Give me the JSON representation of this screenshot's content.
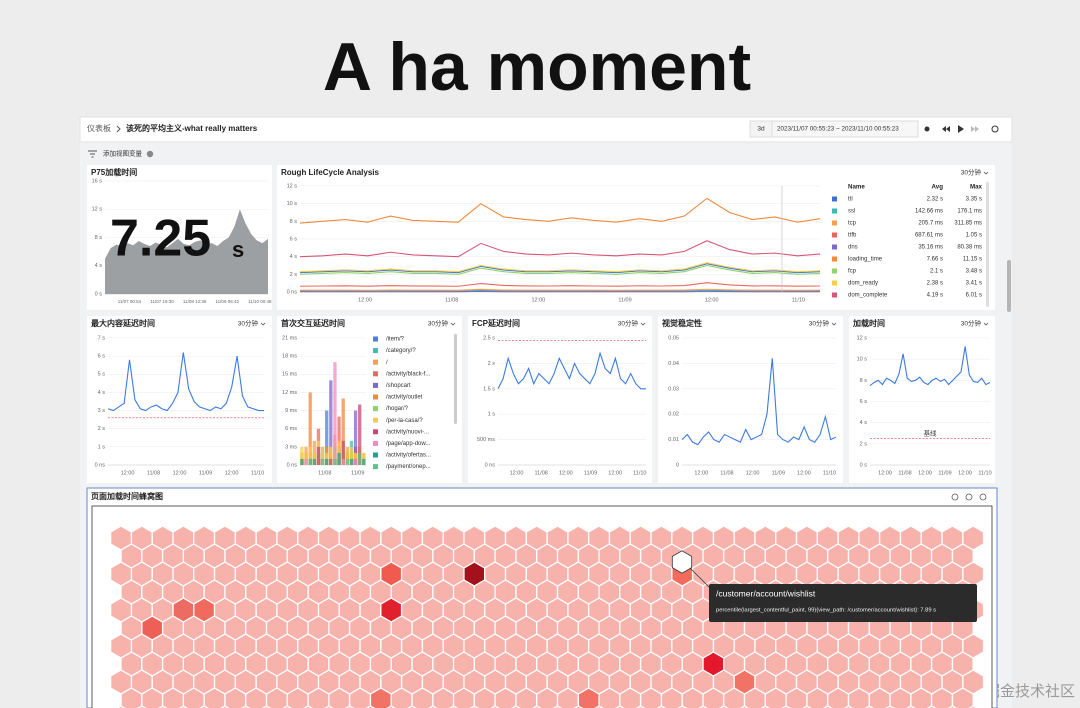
{
  "slide": {
    "title": "A ha moment",
    "watermark": "@稀土掘金技术社区"
  },
  "toolbar": {
    "breadcrumb_root": "仪表板",
    "breadcrumb_current": "该死的平均主义-what really matters",
    "range_preset": "3d",
    "time_range": "2023/11/07 00:55:23 ~ 2023/11/10 00:55:23"
  },
  "variables": {
    "add_label": "添加视图变量"
  },
  "panels": {
    "p75": {
      "type": "area",
      "title": "P75加载时间",
      "value": 7.25,
      "unit": "s",
      "color": "#8c8f93",
      "ylim": [
        0,
        16
      ],
      "yticks": [
        {
          "value": 0,
          "label": "0 s"
        },
        {
          "value": 4,
          "label": "4 s"
        },
        {
          "value": 8,
          "label": "8 s"
        },
        {
          "value": 12,
          "label": "12 s"
        },
        {
          "value": 16,
          "label": "16 s"
        }
      ],
      "xticks": [
        "11/07 00:54",
        "11/07 18:30",
        "11/08 12:36",
        "11/09 06:42",
        "11/10 00:48"
      ],
      "series": [
        {
          "values": [
            5,
            6.5,
            7,
            6.8,
            7.2,
            6.9,
            7.5,
            7.1,
            6.8,
            7.3,
            7,
            6.6,
            7.2,
            7.8,
            7.1,
            6.9,
            7.4,
            7.6,
            7,
            7.2,
            6.8,
            7.5,
            8,
            9.5,
            12,
            10,
            8.5,
            7.6,
            7.2,
            7.8
          ]
        }
      ]
    },
    "lifecycle": {
      "type": "line",
      "title": "Rough LifeCycle Analysis",
      "interval": "30分钟",
      "ylim": [
        0,
        12
      ],
      "yticks": [
        {
          "value": 0,
          "label": "0 ns"
        },
        {
          "value": 2,
          "label": "2 s"
        },
        {
          "value": 4,
          "label": "4 s"
        },
        {
          "value": 6,
          "label": "6 s"
        },
        {
          "value": 8,
          "label": "8 s"
        },
        {
          "value": 10,
          "label": "10 s"
        },
        {
          "value": 12,
          "label": "12 s"
        }
      ],
      "xticks": [
        "12:00",
        "11/08",
        "12:00",
        "11/09",
        "12:00",
        "11/10"
      ],
      "legend_header": [
        "Name",
        "Avg",
        "Max"
      ],
      "series": [
        {
          "name": "ttl",
          "avg": "2.32 s",
          "max": "3.35 s",
          "color": "#3b6fd4",
          "values": [
            2.2,
            2.3,
            2.4,
            2.3,
            2.5,
            2.3,
            2.3,
            2.2,
            2.9,
            2.5,
            2.3,
            2.3,
            2.4,
            2.3,
            2.2,
            2.4,
            2.3,
            2.5,
            3.2,
            2.7,
            2.3,
            2.4,
            2.2,
            2.3
          ]
        },
        {
          "name": "ssl",
          "avg": "142.66 ms",
          "max": "176.1 ms",
          "color": "#3fb8b0",
          "values": [
            0.14,
            0.15,
            0.14,
            0.13,
            0.15,
            0.14,
            0.14,
            0.13,
            0.17,
            0.15,
            0.14,
            0.14,
            0.15,
            0.14,
            0.13,
            0.14,
            0.14,
            0.15,
            0.17,
            0.16,
            0.14,
            0.15,
            0.13,
            0.14
          ]
        },
        {
          "name": "tcp",
          "avg": "205.7 ms",
          "max": "311.85 ms",
          "color": "#f5a04a",
          "values": [
            0.2,
            0.21,
            0.2,
            0.19,
            0.22,
            0.2,
            0.21,
            0.19,
            0.3,
            0.22,
            0.2,
            0.2,
            0.21,
            0.2,
            0.19,
            0.21,
            0.2,
            0.22,
            0.31,
            0.24,
            0.2,
            0.21,
            0.19,
            0.2
          ]
        },
        {
          "name": "ttfb",
          "avg": "687.61 ms",
          "max": "1.05 s",
          "color": "#e8685f",
          "values": [
            0.65,
            0.68,
            0.7,
            0.66,
            0.72,
            0.69,
            0.67,
            0.65,
            0.95,
            0.74,
            0.69,
            0.68,
            0.71,
            0.68,
            0.66,
            0.7,
            0.68,
            0.73,
            1.05,
            0.8,
            0.69,
            0.7,
            0.66,
            0.68
          ]
        },
        {
          "name": "dns",
          "avg": "35.16 ms",
          "max": "80.38 ms",
          "color": "#7b68c8",
          "values": [
            0.03,
            0.04,
            0.03,
            0.03,
            0.04,
            0.03,
            0.04,
            0.03,
            0.08,
            0.04,
            0.03,
            0.03,
            0.04,
            0.03,
            0.03,
            0.04,
            0.03,
            0.04,
            0.07,
            0.05,
            0.03,
            0.04,
            0.03,
            0.03
          ]
        },
        {
          "name": "loading_time",
          "avg": "7.66 s",
          "max": "11.15 s",
          "color": "#f08a3c",
          "values": [
            7.8,
            8,
            8.2,
            7.9,
            8.6,
            8.1,
            8,
            7.9,
            10,
            8.5,
            8.2,
            8,
            8.4,
            8.1,
            7.9,
            8.3,
            8,
            8.6,
            10.6,
            9,
            8.2,
            8.5,
            7.9,
            8.3
          ]
        },
        {
          "name": "fcp",
          "avg": "2.1 s",
          "max": "3.48 s",
          "color": "#8fd36a",
          "values": [
            2,
            2.1,
            2.2,
            2.1,
            2.3,
            2.1,
            2.1,
            2,
            2.7,
            2.3,
            2.1,
            2.1,
            2.2,
            2.1,
            2,
            2.2,
            2.1,
            2.3,
            3,
            2.5,
            2.1,
            2.2,
            2,
            2.1
          ]
        },
        {
          "name": "dom_ready",
          "avg": "2.38 s",
          "max": "3.41 s",
          "color": "#f5cf4a",
          "values": [
            2.3,
            2.4,
            2.5,
            2.4,
            2.6,
            2.4,
            2.4,
            2.3,
            3,
            2.6,
            2.4,
            2.4,
            2.5,
            2.4,
            2.3,
            2.5,
            2.4,
            2.6,
            3.3,
            2.8,
            2.4,
            2.5,
            2.3,
            2.4
          ]
        },
        {
          "name": "dom_complete",
          "avg": "4.19 s",
          "max": "6.01 s",
          "color": "#d6577a",
          "values": [
            4,
            4.1,
            4.3,
            4.1,
            4.5,
            4.2,
            4.1,
            4,
            5.5,
            4.6,
            4.3,
            4.2,
            4.4,
            4.2,
            4.1,
            4.3,
            4.2,
            4.6,
            5.8,
            4.8,
            4.3,
            4.4,
            4.1,
            4.3
          ]
        }
      ]
    },
    "lcp": {
      "type": "line",
      "title": "最大内容延迟时间",
      "interval": "30分钟",
      "threshold": 2.6,
      "ylim": [
        0,
        7
      ],
      "yticks": [
        {
          "value": 0,
          "label": "0 ns"
        },
        {
          "value": 1,
          "label": "1 s"
        },
        {
          "value": 2,
          "label": "2 s"
        },
        {
          "value": 3,
          "label": "3 s"
        },
        {
          "value": 4,
          "label": "4 s"
        },
        {
          "value": 5,
          "label": "5 s"
        },
        {
          "value": 6,
          "label": "6 s"
        },
        {
          "value": 7,
          "label": "7 s"
        }
      ],
      "xticks": [
        "12:00",
        "11/08",
        "12:00",
        "11/09",
        "12:00",
        "11/10"
      ],
      "series": [
        {
          "color": "#3b7be0",
          "values": [
            3.1,
            3,
            3.2,
            3.4,
            5.8,
            3.6,
            3.1,
            3,
            3.2,
            3.3,
            3.1,
            3,
            3.4,
            4,
            6.2,
            4.2,
            3.5,
            3.2,
            3.1,
            3,
            3.2,
            3.1,
            3.4,
            4.3,
            6,
            3.8,
            3.2,
            3.1,
            3,
            3
          ]
        }
      ]
    },
    "fid": {
      "type": "bar",
      "title": "首次交互延迟时间",
      "interval": "30分钟",
      "ylim": [
        0,
        21
      ],
      "yticks": [
        {
          "value": 0,
          "label": "0 ns"
        },
        {
          "value": 3,
          "label": "3 ms"
        },
        {
          "value": 6,
          "label": "6 ms"
        },
        {
          "value": 9,
          "label": "9 ms"
        },
        {
          "value": 12,
          "label": "12 ms"
        },
        {
          "value": 15,
          "label": "15 ms"
        },
        {
          "value": 18,
          "label": "18 ms"
        },
        {
          "value": 21,
          "label": "21 ms"
        }
      ],
      "xticks": [
        "11/08",
        "11/09"
      ],
      "series": [
        {
          "name": "/item/?",
          "color": "#4e7fd8",
          "values": [
            0,
            1,
            0,
            2,
            1,
            0,
            9,
            1,
            0,
            1,
            3,
            0,
            1,
            0,
            2,
            1
          ]
        },
        {
          "name": "/category/?",
          "color": "#47b8ae",
          "values": [
            1,
            0,
            2,
            1,
            0,
            3,
            1,
            0,
            2,
            1,
            0,
            1,
            4,
            0,
            1,
            0
          ]
        },
        {
          "name": "/",
          "color": "#f5a04a",
          "values": [
            2,
            3,
            2,
            4,
            3,
            2,
            3,
            2,
            5,
            3,
            2,
            3,
            2,
            3,
            2,
            2
          ]
        },
        {
          "name": "/activity/black-f...",
          "color": "#e8685f",
          "values": [
            0,
            1,
            0,
            0,
            6,
            1,
            0,
            2,
            0,
            8,
            1,
            0,
            0,
            3,
            0,
            1
          ]
        },
        {
          "name": "/shopcart",
          "color": "#7b68c8",
          "values": [
            0,
            0,
            1,
            0,
            2,
            0,
            0,
            14,
            1,
            0,
            0,
            2,
            0,
            9,
            0,
            0
          ]
        },
        {
          "name": "/activity/outlet",
          "color": "#f08a3c",
          "values": [
            1,
            2,
            12,
            1,
            2,
            1,
            3,
            2,
            1,
            2,
            11,
            2,
            1,
            2,
            1,
            1
          ]
        },
        {
          "name": "/hogar/?",
          "color": "#8fd36a",
          "values": [
            0,
            1,
            0,
            1,
            0,
            2,
            0,
            1,
            3,
            0,
            1,
            0,
            2,
            1,
            0,
            1
          ]
        },
        {
          "name": "/per-la-casa/?",
          "color": "#f5cf4a",
          "values": [
            3,
            2,
            3,
            2,
            4,
            3,
            2,
            3,
            2,
            4,
            3,
            2,
            3,
            2,
            3,
            2
          ]
        },
        {
          "name": "/activity/nuovi-...",
          "color": "#c64b73",
          "values": [
            0,
            0,
            1,
            0,
            3,
            0,
            0,
            1,
            0,
            0,
            4,
            0,
            0,
            1,
            10,
            0
          ]
        },
        {
          "name": "/page/app-dow...",
          "color": "#f08cc0",
          "values": [
            0,
            1,
            0,
            0,
            0,
            1,
            0,
            0,
            17,
            0,
            1,
            0,
            0,
            1,
            0,
            0
          ]
        },
        {
          "name": "/activity/ofertas...",
          "color": "#2a9d8f",
          "values": [
            1,
            0,
            0,
            1,
            0,
            0,
            1,
            0,
            0,
            2,
            0,
            0,
            1,
            0,
            0,
            1
          ]
        },
        {
          "name": "/payment/onep...",
          "color": "#5ec48a",
          "values": [
            0,
            0,
            1,
            0,
            0,
            1,
            0,
            0,
            1,
            0,
            0,
            1,
            0,
            0,
            2,
            0
          ]
        }
      ]
    },
    "fcp": {
      "type": "line",
      "title": "FCP延迟时间",
      "interval": "30分钟",
      "threshold": 2.45,
      "ylim": [
        0,
        2.5
      ],
      "yticks": [
        {
          "value": 0,
          "label": "0 ns"
        },
        {
          "value": 0.5,
          "label": "500 ms"
        },
        {
          "value": 1,
          "label": "1 s"
        },
        {
          "value": 1.5,
          "label": "1.5 s"
        },
        {
          "value": 2,
          "label": "2 s"
        },
        {
          "value": 2.5,
          "label": "2.5 s"
        }
      ],
      "xticks": [
        "12:00",
        "11/08",
        "12:00",
        "11/09",
        "12:00",
        "11/10"
      ],
      "series": [
        {
          "color": "#3b7be0",
          "values": [
            1.5,
            1.7,
            2.1,
            1.8,
            1.6,
            1.7,
            1.9,
            1.6,
            1.8,
            1.7,
            1.6,
            1.8,
            2.1,
            1.9,
            1.7,
            2,
            1.8,
            1.7,
            1.6,
            1.8,
            2.2,
            1.9,
            1.8,
            2.1,
            1.7,
            1.6,
            1.8,
            1.6,
            1.5,
            1.5
          ]
        }
      ]
    },
    "cls": {
      "type": "line",
      "title": "视觉稳定性",
      "interval": "30分钟",
      "ylim": [
        0,
        0.05
      ],
      "yticks": [
        0,
        0.01,
        0.02,
        0.03,
        0.04,
        0.05
      ],
      "xticks": [
        "12:00",
        "11/08",
        "12:00",
        "11/09",
        "12:00",
        "11/10"
      ],
      "series": [
        {
          "color": "#3b7be0",
          "values": [
            0.01,
            0.012,
            0.009,
            0.008,
            0.011,
            0.013,
            0.01,
            0.009,
            0.012,
            0.011,
            0.01,
            0.009,
            0.014,
            0.01,
            0.011,
            0.012,
            0.02,
            0.042,
            0.012,
            0.01,
            0.009,
            0.011,
            0.01,
            0.015,
            0.01,
            0.009,
            0.012,
            0.019,
            0.01,
            0.011
          ]
        }
      ]
    },
    "load": {
      "type": "line",
      "title": "加载时间",
      "interval": "30分钟",
      "baseline": {
        "value": 2.5,
        "label": "基线"
      },
      "ylim": [
        0,
        12
      ],
      "yticks": [
        {
          "value": 0,
          "label": "0 s"
        },
        {
          "value": 2,
          "label": "2 s"
        },
        {
          "value": 4,
          "label": "4 s"
        },
        {
          "value": 6,
          "label": "6 s"
        },
        {
          "value": 8,
          "label": "8 s"
        },
        {
          "value": 10,
          "label": "10 s"
        },
        {
          "value": 12,
          "label": "12 s"
        }
      ],
      "xticks": [
        "12:00",
        "11/08",
        "12:00",
        "11/09",
        "12:00",
        "11/10"
      ],
      "series": [
        {
          "color": "#3b7be0",
          "values": [
            7.5,
            7.8,
            8,
            7.6,
            8.2,
            8,
            7.7,
            8.6,
            10.5,
            8.2,
            7.9,
            8,
            8.3,
            7.8,
            7.6,
            8,
            8.2,
            7.9,
            8.1,
            7.6,
            8,
            8.4,
            8.8,
            11.2,
            8.5,
            7.9,
            7.8,
            8.2,
            7.6,
            7.8
          ]
        }
      ]
    },
    "honeycomb": {
      "title": "页面加载时间蜂窝图",
      "tooltip_title": "/customer/account/wishlist",
      "tooltip_text": "percentile(largest_contentful_paint, 99){view_path: /customer/account/wishlist}: 7.89 s"
    }
  }
}
